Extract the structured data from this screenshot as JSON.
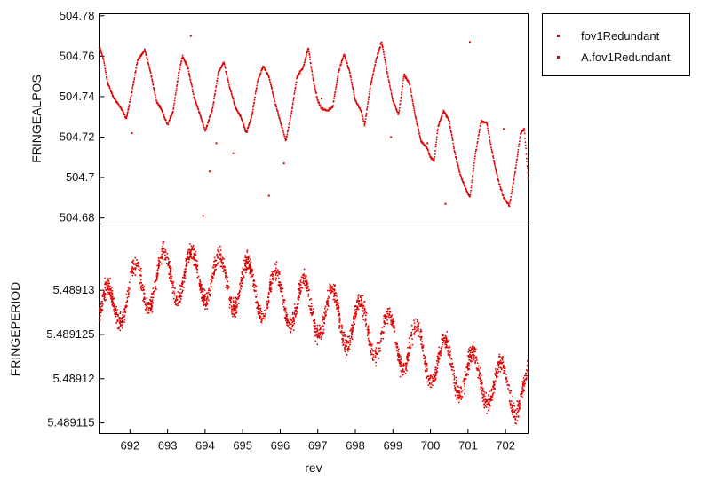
{
  "chart_data": [
    {
      "type": "scatter",
      "ylabel": "FRINGEALPOS",
      "xlabel": "",
      "xlim": [
        691.2,
        702.6
      ],
      "ylim": [
        504.677,
        504.781
      ],
      "y_ticks": [
        "504.68",
        "504.7",
        "504.72",
        "504.74",
        "504.76",
        "504.78"
      ],
      "y_tick_values": [
        504.68,
        504.7,
        504.72,
        504.74,
        504.76,
        504.78
      ],
      "series": [
        {
          "name": "fov1Redundant",
          "color": "#e00000",
          "x": [
            691.2,
            691.3,
            691.4,
            691.55,
            691.7,
            691.8,
            691.9,
            692.05,
            692.2,
            692.4,
            692.55,
            692.7,
            692.85,
            693.0,
            693.15,
            693.3,
            693.4,
            693.55,
            693.7,
            693.85,
            694.0,
            694.2,
            694.35,
            694.5,
            694.65,
            694.8,
            694.95,
            695.1,
            695.25,
            695.4,
            695.55,
            695.7,
            695.85,
            696.0,
            696.15,
            696.3,
            696.45,
            696.6,
            696.75,
            696.9,
            697.0,
            697.1,
            697.25,
            697.4,
            697.55,
            697.7,
            697.85,
            698.0,
            698.15,
            698.25,
            698.4,
            698.55,
            698.7,
            698.85,
            699.0,
            699.15,
            699.3,
            699.45,
            699.6,
            699.75,
            699.9,
            700.0,
            700.1,
            700.2,
            700.35,
            700.5,
            700.65,
            700.8,
            700.95,
            701.05,
            701.2,
            701.35,
            701.5,
            701.65,
            701.8,
            701.95,
            702.1,
            702.25,
            702.4,
            702.5,
            702.6
          ],
          "y": [
            504.764,
            504.758,
            504.747,
            504.74,
            504.736,
            504.733,
            504.729,
            504.742,
            504.758,
            504.763,
            504.752,
            504.738,
            504.733,
            504.726,
            504.733,
            504.752,
            504.76,
            504.754,
            504.74,
            504.732,
            504.723,
            504.734,
            504.752,
            504.757,
            504.745,
            504.735,
            504.73,
            504.722,
            504.731,
            504.748,
            504.755,
            504.75,
            504.738,
            504.728,
            504.718,
            504.732,
            504.75,
            504.754,
            504.764,
            504.746,
            504.738,
            504.734,
            504.733,
            504.735,
            504.752,
            504.761,
            504.752,
            504.738,
            504.733,
            504.726,
            504.745,
            504.758,
            504.767,
            504.752,
            504.738,
            504.731,
            504.751,
            504.746,
            504.73,
            504.718,
            504.715,
            504.71,
            504.708,
            504.725,
            504.733,
            504.728,
            504.712,
            504.701,
            504.694,
            504.69,
            504.712,
            504.728,
            504.727,
            504.712,
            504.699,
            504.69,
            504.686,
            504.702,
            504.722,
            504.724,
            504.7
          ]
        },
        {
          "name": "A.fov1Redundant",
          "color": "#e00000",
          "x": [
            693.62,
            694.12,
            694.75,
            695.7,
            696.1,
            699.92,
            700.4,
            701.05,
            701.95,
            692.05,
            693.95,
            694.3,
            698.95,
            697.1
          ],
          "y": [
            504.77,
            504.703,
            504.712,
            504.691,
            504.707,
            504.717,
            504.687,
            504.767,
            504.724,
            504.722,
            504.681,
            504.717,
            504.72,
            504.739
          ]
        }
      ]
    },
    {
      "type": "scatter",
      "ylabel": "FRINGEPERIOD",
      "xlabel": "rev",
      "xlim": [
        691.2,
        702.6
      ],
      "ylim": [
        5.4891138,
        5.4891375
      ],
      "x_ticks": [
        "692",
        "693",
        "694",
        "695",
        "696",
        "697",
        "698",
        "699",
        "700",
        "701",
        "702"
      ],
      "x_tick_values": [
        692,
        693,
        694,
        695,
        696,
        697,
        698,
        699,
        700,
        701,
        702
      ],
      "y_ticks": [
        "5.489115",
        "5.48912",
        "5.489125",
        "5.48913"
      ],
      "y_tick_values": [
        5.489115,
        5.48912,
        5.489125,
        5.48913
      ],
      "trend": {
        "x": [
          691.2,
          692.0,
          693.0,
          694.0,
          695.0,
          696.0,
          697.0,
          698.0,
          699.0,
          700.0,
          701.0,
          702.0,
          702.6
        ],
        "y": [
          5.489127,
          5.4891298,
          5.4891318,
          5.4891316,
          5.4891305,
          5.4891292,
          5.4891278,
          5.4891262,
          5.4891245,
          5.4891225,
          5.4891205,
          5.489119,
          5.4891185
        ]
      },
      "oscillation_amplitude": 2.8e-06,
      "noise_spread": 1.6e-06,
      "point_count": 2600,
      "series": [
        {
          "name": "fov1Redundant",
          "color": "#e00000"
        },
        {
          "name": "A.fov1Redundant",
          "color": "#e00000"
        }
      ]
    }
  ],
  "legend": {
    "items": [
      {
        "label": "fov1Redundant",
        "color": "#e00000"
      },
      {
        "label": "A.fov1Redundant",
        "color": "#e00000"
      }
    ]
  }
}
